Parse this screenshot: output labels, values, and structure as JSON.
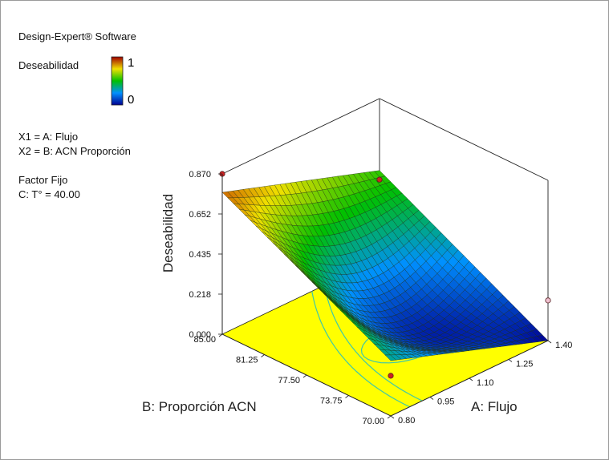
{
  "software": "Design-Expert® Software",
  "response_label": "Deseabilidad",
  "colorbar": {
    "max_label": "1",
    "min_label": "0",
    "max_color": "#cc0000",
    "min_color": "#0000cc"
  },
  "factor_defs": [
    "X1 = A: Flujo",
    "X2 = B: ACN Proporción"
  ],
  "fixed": {
    "title": "Factor Fijo",
    "value": "C: T° = 40.00"
  },
  "chart_data": {
    "type": "surface3d",
    "title": "",
    "zlabel": "Deseabilidad",
    "xlabel": "A: Flujo",
    "ylabel": "B: Proporción ACN",
    "z_ticks": [
      "0.000",
      "0.218",
      "0.435",
      "0.652",
      "0.870"
    ],
    "x_ticks": [
      "0.80",
      "0.95",
      "1.10",
      "1.25",
      "1.40"
    ],
    "y_ticks": [
      "70.00",
      "73.75",
      "77.50",
      "81.25",
      "85.00"
    ],
    "x_range": [
      0.8,
      1.4
    ],
    "y_range": [
      70,
      85
    ],
    "z_range": [
      0,
      0.87
    ],
    "corner_values": [
      {
        "A": 0.8,
        "B": 85.0,
        "desirability": 0.77
      },
      {
        "A": 0.8,
        "B": 70.0,
        "desirability": 0.3
      },
      {
        "A": 1.4,
        "B": 85.0,
        "desirability": 0.48
      },
      {
        "A": 1.4,
        "B": 70.0,
        "desirability": 0.0
      }
    ],
    "design_points": [
      {
        "A": 0.8,
        "B": 85.0,
        "desirability": 0.87,
        "color": "#cc2222"
      },
      {
        "A": 0.8,
        "B": 70.0,
        "desirability": 0.218,
        "color": "#cc2222"
      },
      {
        "A": 1.4,
        "B": 85.0,
        "desirability": 0.43,
        "color": "#cc2222"
      },
      {
        "A": 1.4,
        "B": 70.0,
        "desirability": 0.218,
        "color": "#f0c0d0"
      }
    ],
    "floor_color": "#ffff00",
    "contour_color": "#40c8a8",
    "grid": false
  }
}
